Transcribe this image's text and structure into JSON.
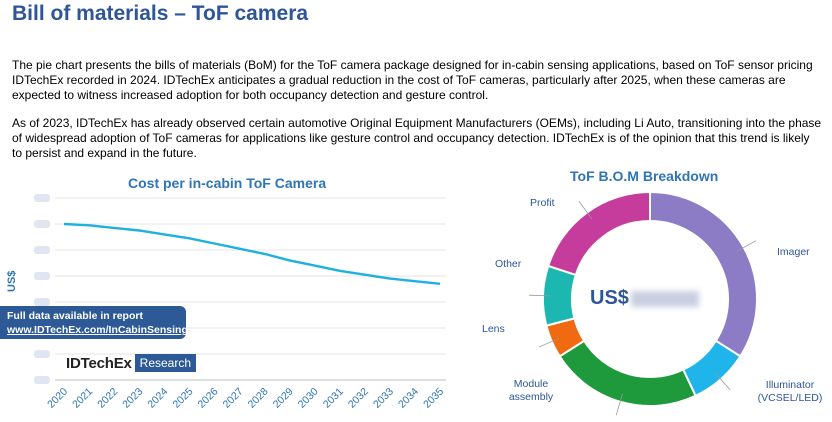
{
  "title": "Bill of materials – ToF camera",
  "paragraph1": "The pie chart presents the bills of materials (BoM) for the ToF camera package designed for in-cabin sensing applications, based on ToF sensor pricing IDTechEx recorded in 2024. IDTechEx anticipates a gradual reduction in the cost of ToF cameras, particularly after 2025, when these cameras are expected to witness increased adoption for both occupancy detection and gesture control.",
  "paragraph2": "As of 2023, IDTechEx has already observed certain automotive Original Equipment Manufacturers (OEMs), including Li Auto, transitioning into the phase of widespread adoption of ToF cameras for applications like gesture control and occupancy detection. IDTechEx is of the opinion that this trend is likely to persist and expand in the future.",
  "banner": {
    "line1": "Full data available in report",
    "line2": "www.IDTechEx.com/InCabinSensing"
  },
  "logo": {
    "brand": "IDTechEx",
    "research": "Research"
  },
  "colors": {
    "line": "#1fb0e0",
    "imager": "#8b7cc5",
    "illuminator": "#1fb5ea",
    "module_assembly": "#1e9a3c",
    "lens": "#ef6a10",
    "other": "#1db7b2",
    "profit": "#c53c9c"
  },
  "chart_data": [
    {
      "type": "line",
      "title": "Cost per in-cabin ToF Camera",
      "xlabel": "",
      "ylabel": "US$",
      "x": [
        "2020",
        "2021",
        "2022",
        "2023",
        "2024",
        "2025",
        "2026",
        "2027",
        "2028",
        "2029",
        "2030",
        "2031",
        "2032",
        "2033",
        "2034",
        "2035"
      ],
      "series": [
        {
          "values": [
            1.0,
            0.995,
            0.985,
            0.975,
            0.96,
            0.945,
            0.925,
            0.905,
            0.885,
            0.86,
            0.84,
            0.82,
            0.805,
            0.79,
            0.78,
            0.77
          ]
        }
      ],
      "ylim": [
        0.4,
        1.1
      ],
      "y_tick_values_obscured": true,
      "grid": "horizontal"
    },
    {
      "type": "pie",
      "title": "ToF B.O.M Breakdown",
      "center_label": "US$",
      "labels": [
        "Imager",
        "Illuminator (VCSEL/LED)",
        "Module assembly",
        "Lens",
        "Other",
        "Profit"
      ],
      "values": [
        34,
        9,
        23,
        5,
        9,
        20
      ]
    }
  ]
}
